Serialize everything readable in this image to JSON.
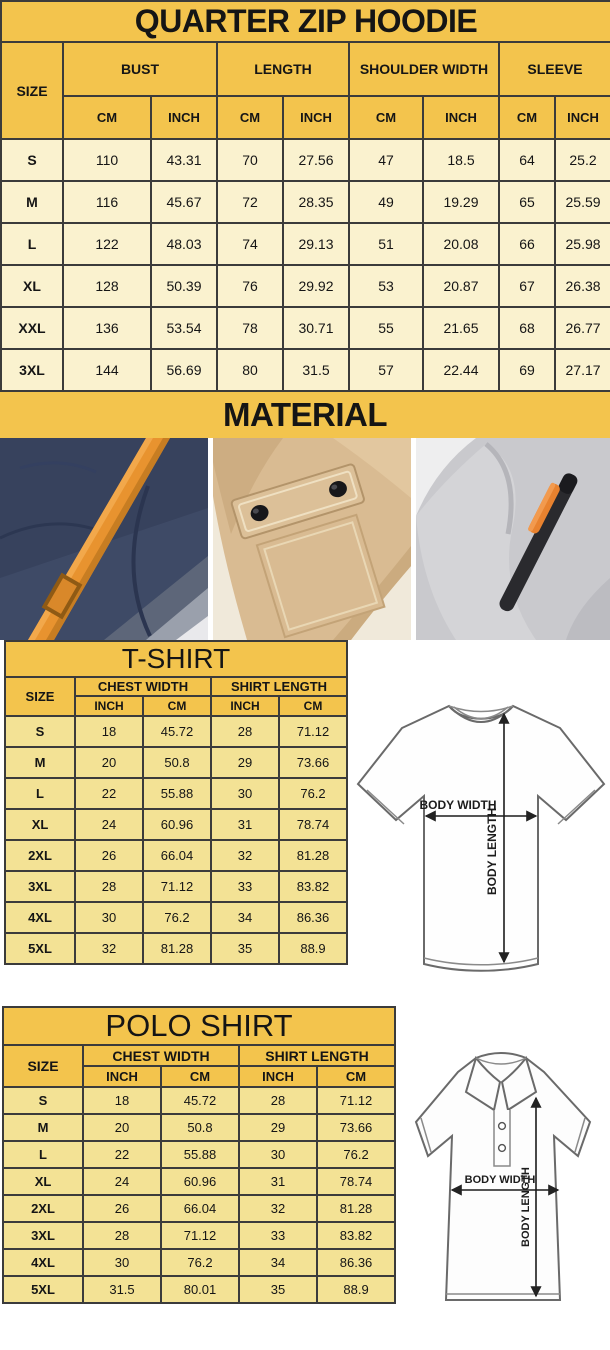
{
  "colors": {
    "gold": "#f3c44d",
    "cream": "#faf2cf",
    "light_yellow": "#f3e295",
    "border": "#3b3b3b",
    "photo_navy": "#3e4a66",
    "photo_orange": "#e8932f",
    "photo_khaki": "#d9bb92",
    "photo_gray": "#c9c9cd"
  },
  "hoodie_table": {
    "title": "QUARTER ZIP HOODIE",
    "size_header": "SIZE",
    "column_groups": [
      "BUST",
      "LENGTH",
      "SHOULDER WIDTH",
      "SLEEVE"
    ],
    "units": [
      "CM",
      "INCH"
    ],
    "rows": [
      [
        "S",
        "110",
        "43.31",
        "70",
        "27.56",
        "47",
        "18.5",
        "64",
        "25.2"
      ],
      [
        "M",
        "116",
        "45.67",
        "72",
        "28.35",
        "49",
        "19.29",
        "65",
        "25.59"
      ],
      [
        "L",
        "122",
        "48.03",
        "74",
        "29.13",
        "51",
        "20.08",
        "66",
        "25.98"
      ],
      [
        "XL",
        "128",
        "50.39",
        "76",
        "29.92",
        "53",
        "20.87",
        "67",
        "26.38"
      ],
      [
        "XXL",
        "136",
        "53.54",
        "78",
        "30.71",
        "55",
        "21.65",
        "68",
        "26.77"
      ],
      [
        "3XL",
        "144",
        "56.69",
        "80",
        "31.5",
        "57",
        "22.44",
        "69",
        "27.17"
      ]
    ]
  },
  "material": {
    "title": "MATERIAL"
  },
  "tshirt_table": {
    "title": "T-SHIRT",
    "size_header": "SIZE",
    "column_groups": [
      "CHEST WIDTH",
      "SHIRT LENGTH"
    ],
    "units": [
      "INCH",
      "CM"
    ],
    "rows": [
      [
        "S",
        "18",
        "45.72",
        "28",
        "71.12"
      ],
      [
        "M",
        "20",
        "50.8",
        "29",
        "73.66"
      ],
      [
        "L",
        "22",
        "55.88",
        "30",
        "76.2"
      ],
      [
        "XL",
        "24",
        "60.96",
        "31",
        "78.74"
      ],
      [
        "2XL",
        "26",
        "66.04",
        "32",
        "81.28"
      ],
      [
        "3XL",
        "28",
        "71.12",
        "33",
        "83.82"
      ],
      [
        "4XL",
        "30",
        "76.2",
        "34",
        "86.36"
      ],
      [
        "5XL",
        "32",
        "81.28",
        "35",
        "88.9"
      ]
    ]
  },
  "polo_table": {
    "title": "POLO SHIRT",
    "size_header": "SIZE",
    "column_groups": [
      "CHEST WIDTH",
      "SHIRT LENGTH"
    ],
    "units": [
      "INCH",
      "CM"
    ],
    "rows": [
      [
        "S",
        "18",
        "45.72",
        "28",
        "71.12"
      ],
      [
        "M",
        "20",
        "50.8",
        "29",
        "73.66"
      ],
      [
        "L",
        "22",
        "55.88",
        "30",
        "76.2"
      ],
      [
        "XL",
        "24",
        "60.96",
        "31",
        "78.74"
      ],
      [
        "2XL",
        "26",
        "66.04",
        "32",
        "81.28"
      ],
      [
        "3XL",
        "28",
        "71.12",
        "33",
        "83.82"
      ],
      [
        "4XL",
        "30",
        "76.2",
        "34",
        "86.36"
      ],
      [
        "5XL",
        "31.5",
        "80.01",
        "35",
        "88.9"
      ]
    ]
  },
  "tshirt_diagram": {
    "width_label": "BODY WIDTH",
    "length_label": "BODY LENGTH"
  },
  "polo_diagram": {
    "width_label": "BODY WIDTH",
    "length_label": "BODY LENGTH"
  }
}
